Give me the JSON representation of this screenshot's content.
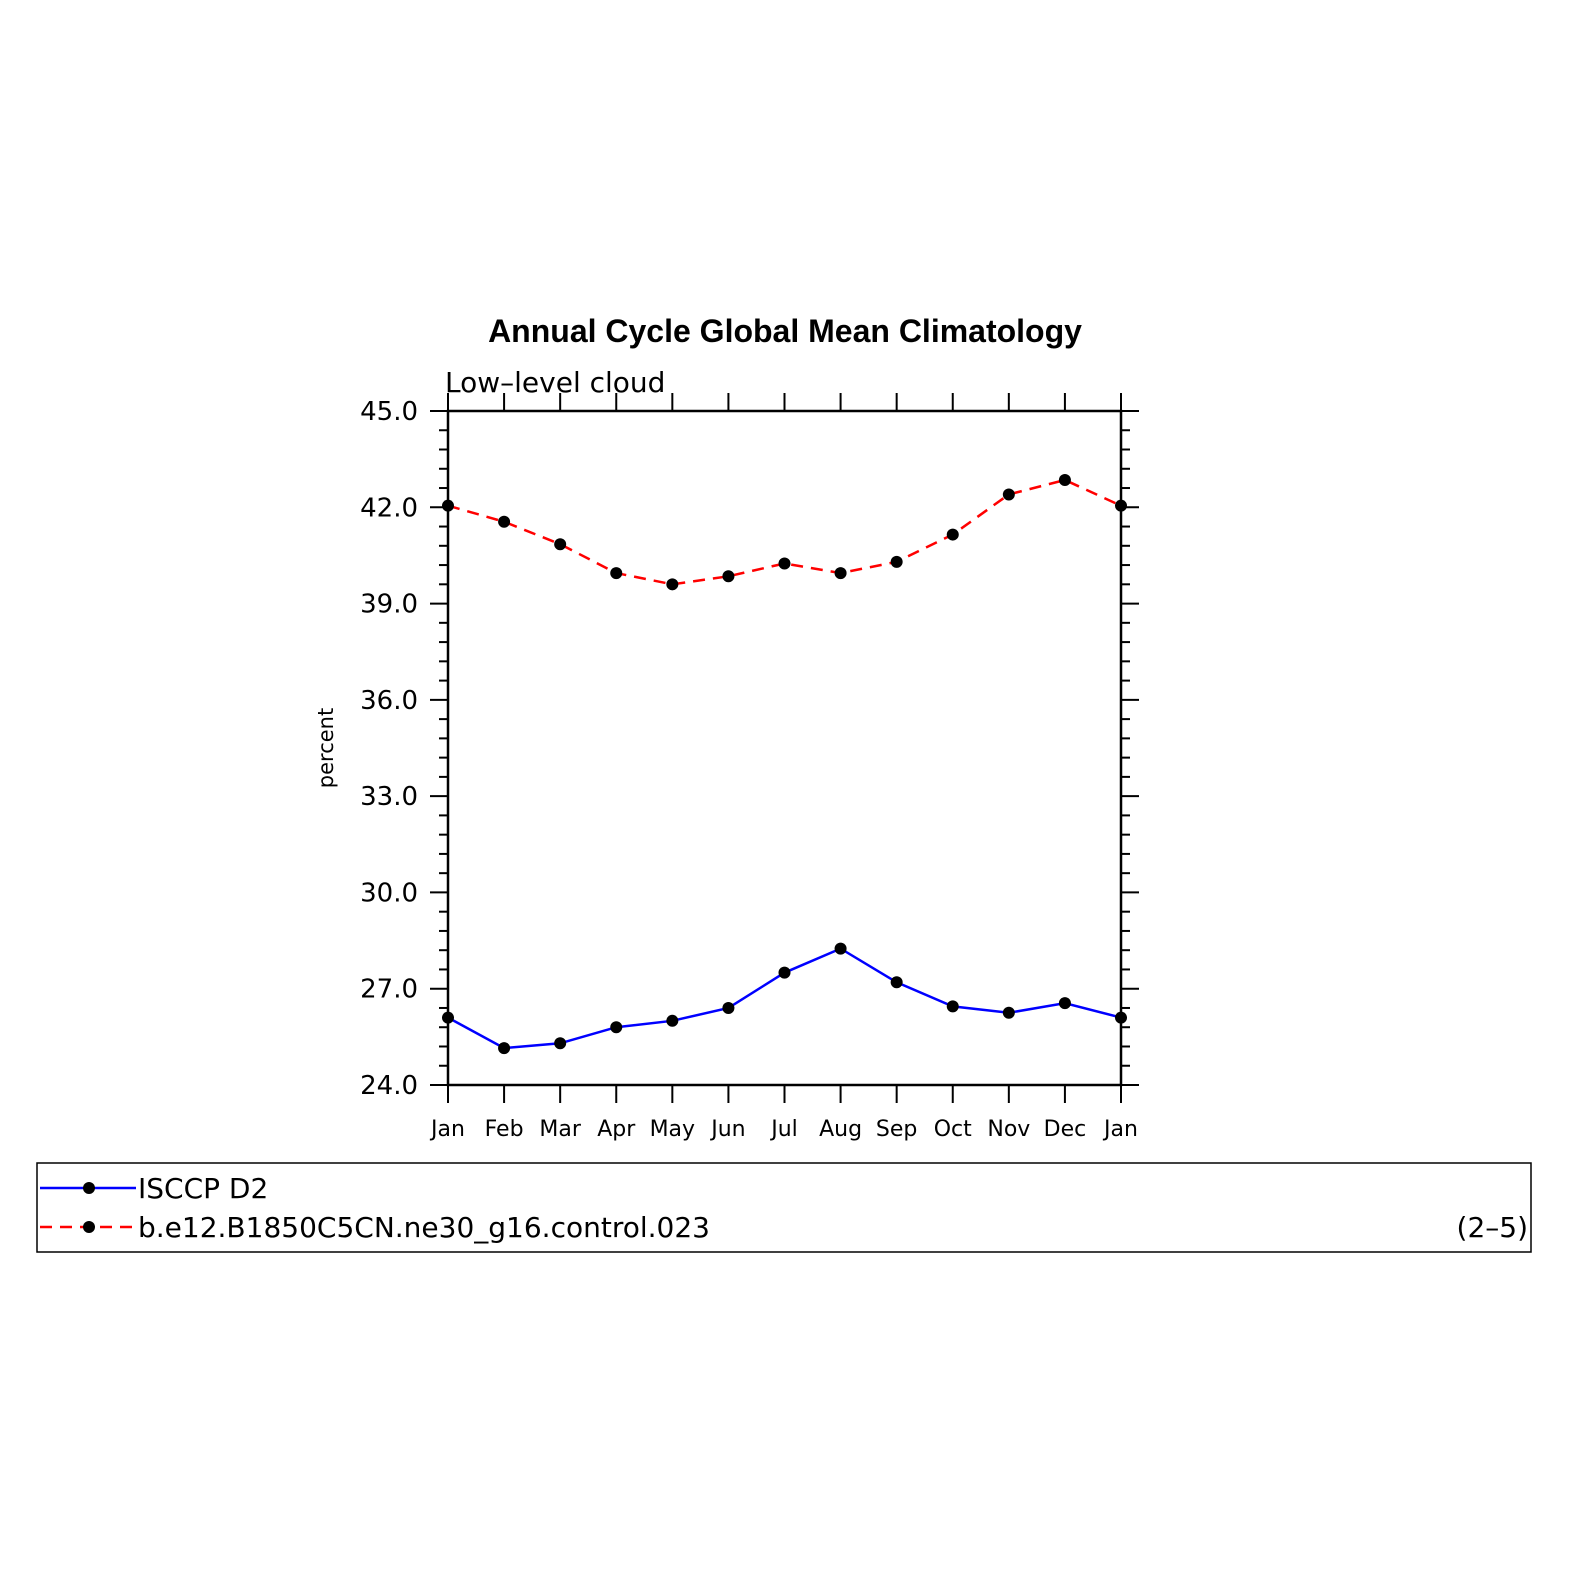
{
  "chart_data": {
    "type": "line",
    "title": "Annual Cycle Global Mean Climatology",
    "subtitle": "Low–level cloud",
    "ylabel": "percent",
    "xlabel": "",
    "categories": [
      "Jan",
      "Feb",
      "Mar",
      "Apr",
      "May",
      "Jun",
      "Jul",
      "Aug",
      "Sep",
      "Oct",
      "Nov",
      "Dec",
      "Jan"
    ],
    "ylim": [
      24.0,
      45.0
    ],
    "yticks": [
      24.0,
      27.0,
      30.0,
      33.0,
      36.0,
      39.0,
      42.0,
      45.0
    ],
    "ytick_labels": [
      "24.0",
      "27.0",
      "30.0",
      "33.0",
      "36.0",
      "39.0",
      "42.0",
      "45.0"
    ],
    "series": [
      {
        "name": "ISCCP D2",
        "color": "#0000ff",
        "line_style": "solid",
        "values": [
          26.1,
          25.15,
          25.3,
          25.8,
          26.0,
          26.4,
          27.5,
          28.25,
          27.2,
          26.45,
          26.25,
          26.55,
          26.1
        ]
      },
      {
        "name": "b.e12.B1850C5CN.ne30_g16.control.023",
        "color": "#ff0000",
        "line_style": "dashed",
        "values": [
          42.05,
          41.55,
          40.85,
          39.95,
          39.6,
          39.85,
          40.25,
          39.95,
          40.3,
          41.15,
          42.4,
          42.85,
          42.05
        ]
      }
    ],
    "legend": {
      "placement": "below",
      "note": "(2–5)"
    },
    "grid": false
  }
}
